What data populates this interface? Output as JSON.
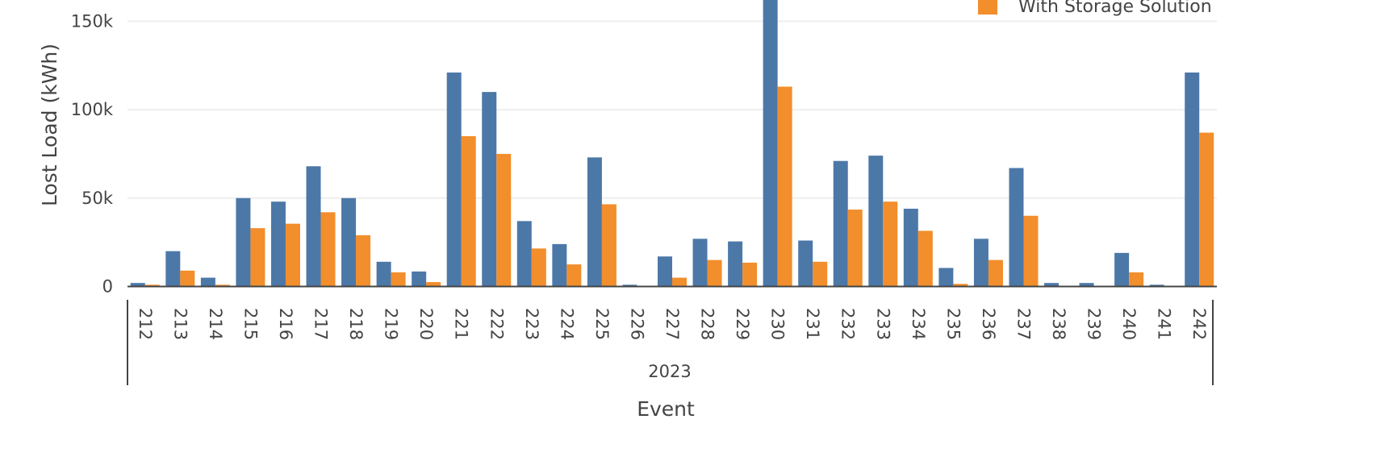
{
  "chart_data": {
    "type": "bar",
    "xlabel": "Event",
    "ylabel": "Lost Load (kWh)",
    "year_label": "2023",
    "categories": [
      "212",
      "213",
      "214",
      "215",
      "216",
      "217",
      "218",
      "219",
      "220",
      "221",
      "222",
      "223",
      "224",
      "225",
      "226",
      "227",
      "228",
      "229",
      "230",
      "231",
      "232",
      "233",
      "234",
      "235",
      "236",
      "237",
      "238",
      "239",
      "240",
      "241",
      "242"
    ],
    "series": [
      {
        "name": "",
        "color": "#4c78a8",
        "values": [
          2000,
          20000,
          5000,
          50000,
          48000,
          68000,
          50000,
          14000,
          8500,
          121000,
          110000,
          37000,
          24000,
          73000,
          1000,
          17000,
          27000,
          25500,
          165000,
          26000,
          71000,
          74000,
          44000,
          10500,
          27000,
          67000,
          2000,
          2000,
          19000,
          1000,
          121000
        ]
      },
      {
        "name": "With Storage Solution",
        "color": "#f28e2b",
        "values": [
          1000,
          9000,
          1000,
          33000,
          35500,
          42000,
          29000,
          8000,
          2500,
          85000,
          75000,
          21500,
          12500,
          46500,
          0,
          5000,
          15000,
          13500,
          113000,
          14000,
          43500,
          48000,
          31500,
          1500,
          15000,
          40000,
          0,
          0,
          8000,
          0,
          87000
        ]
      }
    ],
    "y_ticks": [
      {
        "value": 0,
        "label": "0"
      },
      {
        "value": 50000,
        "label": "50k"
      },
      {
        "value": 100000,
        "label": "100k"
      },
      {
        "value": 150000,
        "label": "150k"
      }
    ],
    "ylim": [
      -7500,
      162000
    ],
    "grid": true,
    "legend_position": "top-right"
  }
}
